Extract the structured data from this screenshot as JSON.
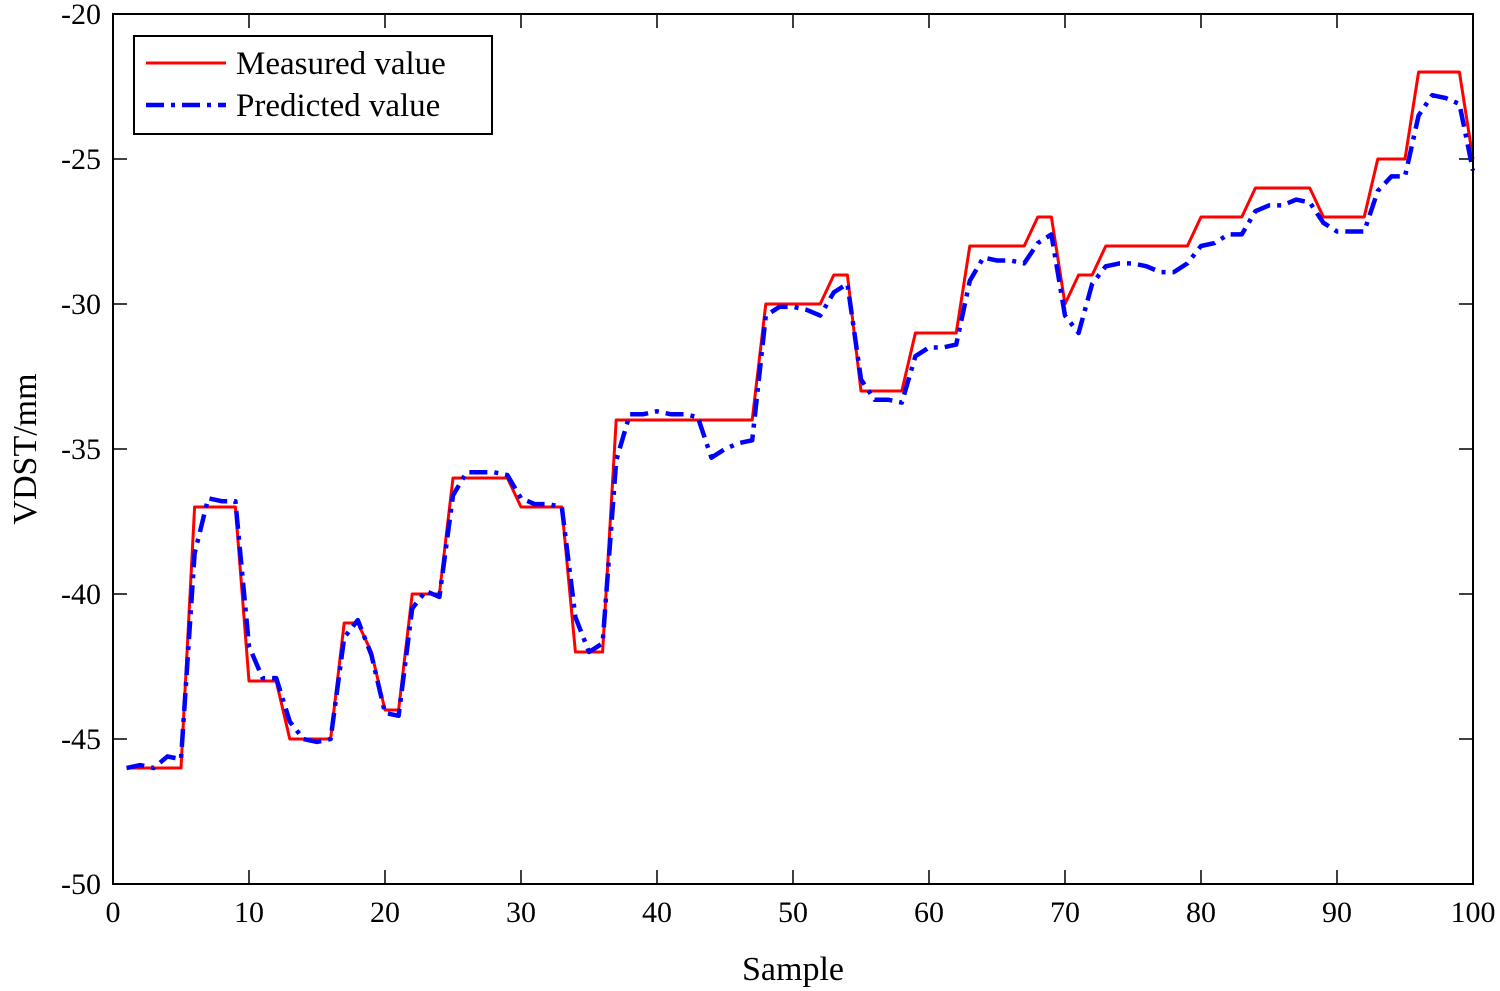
{
  "chart_data": {
    "type": "line",
    "xlabel": "Sample",
    "ylabel": "VDST/mm",
    "xlim": [
      0,
      100
    ],
    "ylim": [
      -50,
      -20
    ],
    "xticks": [
      0,
      10,
      20,
      30,
      40,
      50,
      60,
      70,
      80,
      90,
      100
    ],
    "yticks": [
      -50,
      -45,
      -40,
      -35,
      -30,
      -25,
      -20
    ],
    "x": [
      1,
      2,
      3,
      4,
      5,
      6,
      7,
      8,
      9,
      10,
      11,
      12,
      13,
      14,
      15,
      16,
      17,
      18,
      19,
      20,
      21,
      22,
      23,
      24,
      25,
      26,
      27,
      28,
      29,
      30,
      31,
      32,
      33,
      34,
      35,
      36,
      37,
      38,
      39,
      40,
      41,
      42,
      43,
      44,
      45,
      46,
      47,
      48,
      49,
      50,
      51,
      52,
      53,
      54,
      55,
      56,
      57,
      58,
      59,
      60,
      61,
      62,
      63,
      64,
      65,
      66,
      67,
      68,
      69,
      70,
      71,
      72,
      73,
      74,
      75,
      76,
      77,
      78,
      79,
      80,
      81,
      82,
      83,
      84,
      85,
      86,
      87,
      88,
      89,
      90,
      91,
      92,
      93,
      94,
      95,
      96,
      97,
      98,
      99,
      100
    ],
    "series": [
      {
        "name": "Measured value",
        "color": "#ff0000",
        "style": "solid",
        "values": [
          -46,
          -46,
          -46,
          -46,
          -46,
          -37,
          -37,
          -37,
          -37,
          -43,
          -43,
          -43,
          -45,
          -45,
          -45,
          -45,
          -41,
          -41,
          -42,
          -44,
          -44,
          -40,
          -40,
          -40,
          -36,
          -36,
          -36,
          -36,
          -36,
          -37,
          -37,
          -37,
          -37,
          -42,
          -42,
          -42,
          -34,
          -34,
          -34,
          -34,
          -34,
          -34,
          -34,
          -34,
          -34,
          -34,
          -34,
          -30,
          -30,
          -30,
          -30,
          -30,
          -29,
          -29,
          -33,
          -33,
          -33,
          -33,
          -31,
          -31,
          -31,
          -31,
          -28,
          -28,
          -28,
          -28,
          -28,
          -27,
          -27,
          -30,
          -29,
          -29,
          -28,
          -28,
          -28,
          -28,
          -28,
          -28,
          -28,
          -27,
          -27,
          -27,
          -27,
          -26,
          -26,
          -26,
          -26,
          -26,
          -27,
          -27,
          -27,
          -27,
          -25,
          -25,
          -25,
          -22,
          -22,
          -22,
          -22,
          -25
        ]
      },
      {
        "name": "Predicted value",
        "color": "#0000ff",
        "style": "dashdot",
        "values": [
          -46,
          -45.9,
          -46,
          -45.6,
          -45.7,
          -38.6,
          -36.7,
          -36.8,
          -36.8,
          -41.8,
          -42.9,
          -42.9,
          -44.4,
          -45,
          -45.1,
          -45,
          -41.5,
          -40.9,
          -42.1,
          -44.1,
          -44.2,
          -40.5,
          -39.9,
          -40.1,
          -36.6,
          -35.8,
          -35.8,
          -35.8,
          -35.9,
          -36.7,
          -36.9,
          -36.9,
          -37,
          -40.8,
          -42,
          -41.7,
          -35.4,
          -33.8,
          -33.8,
          -33.7,
          -33.8,
          -33.8,
          -33.9,
          -35.3,
          -35,
          -34.8,
          -34.7,
          -30.4,
          -30.1,
          -30.1,
          -30.2,
          -30.4,
          -29.6,
          -29.3,
          -32.6,
          -33.3,
          -33.3,
          -33.4,
          -31.8,
          -31.5,
          -31.5,
          -31.4,
          -29.2,
          -28.4,
          -28.5,
          -28.5,
          -28.6,
          -27.9,
          -27.6,
          -30.4,
          -31,
          -29.3,
          -28.7,
          -28.6,
          -28.6,
          -28.7,
          -28.9,
          -28.9,
          -28.6,
          -28,
          -27.9,
          -27.6,
          -27.6,
          -26.8,
          -26.6,
          -26.6,
          -26.4,
          -26.5,
          -27.2,
          -27.5,
          -27.5,
          -27.5,
          -26.1,
          -25.6,
          -25.6,
          -23.5,
          -22.8,
          -22.9,
          -23.1,
          -25.4
        ]
      }
    ],
    "legend": {
      "position": "top-left"
    }
  }
}
